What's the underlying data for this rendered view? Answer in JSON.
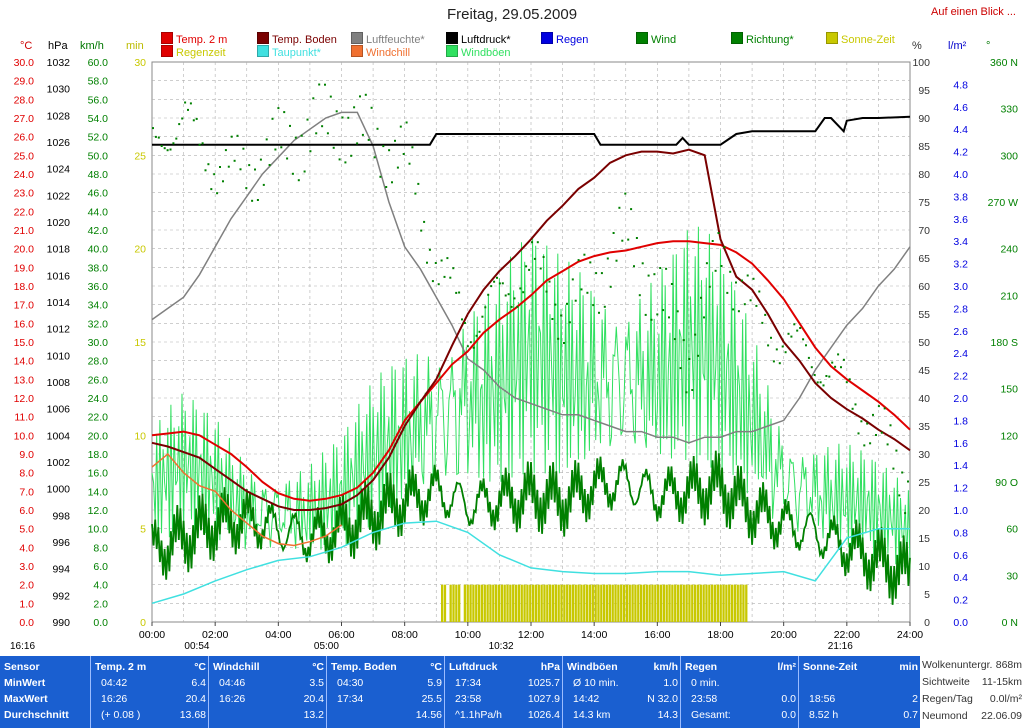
{
  "title": "Freitag, 29.05.2009",
  "top_link": "Auf einen Blick ...",
  "legend": [
    {
      "label": "Temp. 2 m",
      "color": "#e00000"
    },
    {
      "label": "Regenzeit",
      "color": "#e00000",
      "text_color": "#c8c800"
    },
    {
      "label": "Temp. Boden",
      "color": "#7a0000"
    },
    {
      "label": "Taupunkt*",
      "color": "#40e0e0"
    },
    {
      "label": "Luftfeuchte*",
      "color": "#808080"
    },
    {
      "label": "Windchill",
      "color": "#f07030"
    },
    {
      "label": "Luftdruck*",
      "color": "#000000"
    },
    {
      "label": "Windböen",
      "color": "#30e060"
    },
    {
      "label": "Regen",
      "color": "#0000e0"
    },
    {
      "label": "Wind",
      "color": "#008000"
    },
    {
      "label": "Richtung*",
      "color": "#008000"
    },
    {
      "label": "Sonne-Zeit",
      "color": "#c8c800"
    }
  ],
  "axis_units": {
    "temp": "°C",
    "press": "hPa",
    "wind": "km/h",
    "min": "min",
    "pct": "%",
    "rain": "l/m²",
    "dir": "°"
  },
  "chart_data": {
    "type": "line",
    "title": "Freitag, 29.05.2009",
    "x_ticks": [
      "00:00",
      "02:00",
      "04:00",
      "06:00",
      "08:00",
      "10:00",
      "12:00",
      "14:00",
      "16:00",
      "18:00",
      "20:00",
      "22:00",
      "24:00"
    ],
    "axes": {
      "temp": {
        "range": [
          0,
          30
        ],
        "ticks": [
          "0.0",
          "1.0",
          "2.0",
          "3.0",
          "4.0",
          "5.0",
          "6.0",
          "7.0",
          "8.0",
          "9.0",
          "10.0",
          "11.0",
          "12.0",
          "13.0",
          "14.0",
          "15.0",
          "16.0",
          "17.0",
          "18.0",
          "19.0",
          "20.0",
          "21.0",
          "22.0",
          "23.0",
          "24.0",
          "25.0",
          "26.0",
          "27.0",
          "28.0",
          "29.0",
          "30.0"
        ],
        "color": "#e00000"
      },
      "press": {
        "range": [
          990,
          1032
        ],
        "ticks": [
          "990",
          "992",
          "994",
          "996",
          "998",
          "1000",
          "1002",
          "1004",
          "1006",
          "1008",
          "1010",
          "1012",
          "1014",
          "1016",
          "1018",
          "1020",
          "1022",
          "1024",
          "1026",
          "1028",
          "1030",
          "1032"
        ],
        "color": "#000000"
      },
      "wind": {
        "range": [
          0,
          60
        ],
        "ticks": [
          "0.0",
          "2.0",
          "4.0",
          "6.0",
          "8.0",
          "10.0",
          "12.0",
          "14.0",
          "16.0",
          "18.0",
          "20.0",
          "22.0",
          "24.0",
          "26.0",
          "28.0",
          "30.0",
          "32.0",
          "34.0",
          "36.0",
          "38.0",
          "40.0",
          "42.0",
          "44.0",
          "46.0",
          "48.0",
          "50.0",
          "52.0",
          "54.0",
          "56.0",
          "58.0",
          "60.0"
        ],
        "color": "#008000"
      },
      "min": {
        "range": [
          0,
          30
        ],
        "ticks": [
          "0",
          "5",
          "10",
          "15",
          "20",
          "25",
          "30"
        ],
        "color": "#c8c800"
      },
      "pct": {
        "range": [
          0,
          100
        ],
        "ticks": [
          "0",
          "5",
          "10",
          "15",
          "20",
          "25",
          "30",
          "35",
          "40",
          "45",
          "50",
          "55",
          "60",
          "65",
          "70",
          "75",
          "80",
          "85",
          "90",
          "95",
          "100"
        ],
        "color": "#333333"
      },
      "rain": {
        "range": [
          0,
          5
        ],
        "ticks": [
          "0.0",
          "0.2",
          "0.4",
          "0.6",
          "0.8",
          "1.0",
          "1.2",
          "1.4",
          "1.6",
          "1.8",
          "2.0",
          "2.2",
          "2.4",
          "2.6",
          "2.8",
          "3.0",
          "3.2",
          "3.4",
          "3.6",
          "3.8",
          "4.0",
          "4.2",
          "4.4",
          "4.6",
          "4.8"
        ],
        "color": "#0000e0"
      },
      "dir": {
        "range": [
          0,
          360
        ],
        "ticks": [
          "0 N",
          "30",
          "60",
          "90 O",
          "120",
          "150",
          "180 S",
          "210",
          "240",
          "270 W",
          "300",
          "330",
          "360 N"
        ],
        "color": "#008000"
      }
    },
    "series": [
      {
        "name": "Temp. 2 m",
        "axis": "temp",
        "color": "#e00000",
        "x": [
          0,
          0.5,
          1,
          1.5,
          2,
          2.5,
          3,
          3.5,
          4,
          4.5,
          5,
          5.5,
          6,
          6.5,
          7,
          7.5,
          8,
          8.5,
          9,
          9.5,
          10,
          10.5,
          11,
          11.5,
          12,
          12.5,
          13,
          13.5,
          14,
          14.5,
          15,
          15.5,
          16,
          16.5,
          17,
          17.5,
          18,
          18.5,
          19,
          19.5,
          20,
          20.5,
          21,
          21.5,
          22,
          22.5,
          23,
          23.5,
          24
        ],
        "y": [
          10.0,
          10.1,
          10.2,
          10.0,
          9.5,
          9.0,
          8.3,
          7.5,
          6.9,
          6.6,
          6.5,
          6.6,
          6.8,
          7.2,
          8.0,
          9.2,
          10.8,
          11.8,
          12.8,
          13.8,
          14.5,
          15.5,
          16.2,
          16.8,
          17.5,
          18.3,
          18.8,
          19.3,
          19.6,
          19.8,
          19.9,
          20.1,
          20.3,
          20.4,
          20.4,
          20.3,
          20.2,
          19.8,
          19.2,
          18.3,
          17.3,
          16.0,
          14.7,
          13.7,
          13.0,
          12.4,
          11.8,
          11.1,
          10.3
        ]
      },
      {
        "name": "Temp. Boden",
        "axis": "temp",
        "color": "#7a0000",
        "x": [
          0,
          0.5,
          1,
          1.5,
          2,
          2.5,
          3,
          3.5,
          4,
          4.5,
          5,
          5.5,
          6,
          6.5,
          7,
          7.5,
          8,
          8.5,
          9,
          9.5,
          10,
          10.5,
          11,
          11.5,
          12,
          12.5,
          13,
          13.5,
          14,
          14.5,
          15,
          15.5,
          16,
          16.5,
          17,
          17.5,
          18,
          18.5,
          19,
          19.5,
          20,
          20.5,
          21,
          21.5,
          22,
          22.5,
          23,
          23.5,
          24
        ],
        "y": [
          9.6,
          9.4,
          9.1,
          8.8,
          8.2,
          7.6,
          7.0,
          6.6,
          6.2,
          6.0,
          6.0,
          6.1,
          6.3,
          6.8,
          7.6,
          8.8,
          10.5,
          11.8,
          13.0,
          14.8,
          16.5,
          17.8,
          18.8,
          19.6,
          20.5,
          21.5,
          22.3,
          23.2,
          23.8,
          24.6,
          25.0,
          25.2,
          25.2,
          25.1,
          25.3,
          25.0,
          20.5,
          18.5,
          17.8,
          16.5,
          15.0,
          14.0,
          12.8,
          12.0,
          11.4,
          10.9,
          10.3,
          9.8,
          9.2
        ]
      },
      {
        "name": "Luftfeuchte*",
        "axis": "pct",
        "color": "#808080",
        "x": [
          0,
          0.5,
          1,
          1.5,
          2,
          2.5,
          3,
          3.5,
          4,
          4.5,
          5,
          5.5,
          6,
          6.5,
          7,
          7.5,
          8,
          8.5,
          9,
          9.5,
          10,
          10.5,
          11,
          11.5,
          12,
          12.5,
          13,
          13.5,
          14,
          14.5,
          15,
          15.5,
          16,
          16.5,
          17,
          17.5,
          18,
          18.5,
          19,
          19.5,
          20,
          20.5,
          21,
          21.5,
          22,
          22.5,
          23,
          23.5,
          24
        ],
        "y": [
          54,
          56,
          58,
          62,
          67,
          72,
          76,
          80,
          83,
          86,
          88,
          90,
          91,
          91,
          85,
          75,
          67,
          63,
          58,
          53,
          47,
          45,
          42,
          40,
          39,
          38,
          37,
          37,
          36,
          35,
          34,
          34,
          33,
          33,
          32,
          33,
          33,
          34,
          34,
          35,
          36,
          40,
          45,
          49,
          53,
          56,
          60,
          63,
          67
        ]
      },
      {
        "name": "Luftdruck*",
        "axis": "press",
        "color": "#000000",
        "x": [
          0,
          1,
          2,
          3,
          4,
          5,
          6,
          7,
          8,
          8.8,
          9.0,
          10,
          11,
          12,
          13,
          14,
          14.2,
          15,
          16,
          16.6,
          16.8,
          17,
          18,
          18.5,
          19,
          20,
          21,
          21.3,
          21.5,
          21.9,
          22,
          22.5,
          23,
          24
        ],
        "y": [
          1025.8,
          1025.8,
          1025.8,
          1025.8,
          1025.8,
          1025.8,
          1025.8,
          1025.8,
          1025.8,
          1025.8,
          1026.6,
          1026.6,
          1026.6,
          1026.6,
          1026.6,
          1026.6,
          1025.8,
          1025.8,
          1025.8,
          1025.8,
          1026.3,
          1025.8,
          1025.8,
          1026.6,
          1026.8,
          1026.8,
          1026.8,
          1027.8,
          1027.8,
          1026.8,
          1027.6,
          1027.8,
          1027.8,
          1027.9
        ]
      },
      {
        "name": "Taupunkt*",
        "axis": "temp",
        "color": "#40e0e0",
        "x": [
          0,
          1,
          2,
          3,
          4,
          5,
          6,
          7,
          8,
          9,
          10,
          11,
          12,
          13,
          14,
          15,
          16,
          17,
          18,
          19,
          20,
          21,
          22,
          23,
          24
        ],
        "y": [
          1.0,
          1.5,
          2.2,
          2.8,
          3.3,
          3.5,
          4.0,
          4.8,
          5.3,
          5.4,
          4.8,
          3.6,
          2.9,
          2.7,
          2.6,
          2.6,
          2.7,
          2.7,
          2.5,
          2.6,
          2.7,
          2.2,
          4.5,
          5.0,
          5.0
        ]
      },
      {
        "name": "Windchill",
        "axis": "temp",
        "color": "#f07030",
        "x": [
          0,
          0.5,
          1,
          1.5,
          2,
          2.5,
          3,
          3.5,
          4,
          4.5,
          5,
          5.5,
          6
        ],
        "y": [
          8.3,
          9.0,
          8.0,
          7.3,
          7.0,
          6.0,
          5.3,
          4.6,
          4.2,
          4.1,
          4.3,
          4.6,
          5.2
        ]
      },
      {
        "name": "Wind",
        "axis": "wind",
        "color": "#008000",
        "x": [
          0,
          1,
          2,
          3,
          4,
          5,
          6,
          7,
          8,
          9,
          10,
          11,
          12,
          13,
          14,
          15,
          16,
          17,
          18,
          19,
          20,
          21,
          22,
          23,
          24
        ],
        "y": [
          7.5,
          9.0,
          10.5,
          11.0,
          10.0,
          9.0,
          10.0,
          11.5,
          13.0,
          14.0,
          12.5,
          13.0,
          13.5,
          13.0,
          14.5,
          15.0,
          13.5,
          14.0,
          14.5,
          12.0,
          10.5,
          9.5,
          8.0,
          6.5,
          5.0
        ]
      },
      {
        "name": "Windböen",
        "axis": "wind",
        "color": "#30e060",
        "x": [
          0,
          1,
          2,
          3,
          4,
          5,
          6,
          7,
          8,
          9,
          10,
          11,
          12,
          13,
          14,
          15,
          16,
          17,
          18,
          19,
          20,
          21,
          22,
          23,
          24
        ],
        "y": [
          15,
          17,
          16,
          14,
          14,
          13,
          14,
          18,
          22,
          26,
          28,
          27,
          29,
          28,
          30,
          31,
          29,
          30,
          28,
          24,
          18,
          16,
          14,
          12,
          10
        ]
      },
      {
        "name": "Sonne-Zeit",
        "axis": "min",
        "color": "#c8c800",
        "x": [
          9.2,
          9.4,
          9.6,
          9.8,
          10.0,
          10.2,
          10.4,
          10.6,
          10.8,
          11.0,
          12,
          13,
          14,
          15,
          16,
          17,
          18,
          18.8
        ],
        "y": [
          2,
          1,
          2,
          1,
          2,
          2,
          1,
          2,
          2,
          2,
          2,
          2,
          2,
          2,
          2,
          2,
          2,
          2
        ]
      },
      {
        "name": "Richtung*",
        "axis": "dir",
        "color": "#008000",
        "x": [
          0,
          0.5,
          1,
          1.5,
          2,
          2.5,
          3,
          3.5,
          4,
          4.5,
          5,
          5.5,
          6,
          6.5,
          7,
          7.5,
          8,
          9,
          10,
          11,
          12,
          13,
          14,
          15,
          16,
          17,
          18,
          19,
          20,
          21,
          22,
          23,
          24
        ],
        "y": [
          305,
          318,
          325,
          305,
          295,
          292,
          290,
          300,
          305,
          310,
          318,
          320,
          325,
          315,
          310,
          305,
          300,
          230,
          190,
          210,
          230,
          200,
          220,
          250,
          210,
          170,
          240,
          200,
          180,
          170,
          150,
          120,
          90
        ]
      }
    ],
    "grid": true,
    "legend_position": "top"
  },
  "sun_strip": {
    "left_time": "16:16",
    "markers": [
      {
        "label": "00:54",
        "at": 0.9
      },
      {
        "label": "05:00",
        "at": 5.0
      },
      {
        "label": "10:32",
        "at": 10.53
      },
      {
        "label": "21:16",
        "at": 21.27
      }
    ]
  },
  "summary": {
    "rows": [
      "Sensor",
      "MinWert",
      "MaxWert",
      "Durchschnitt"
    ],
    "cols": [
      {
        "title": "Temp. 2 m",
        "unit": "°C",
        "cells": [
          [
            "04:42",
            "6.4"
          ],
          [
            "16:26",
            "20.4"
          ],
          [
            "(+ 0.08 )",
            "13.68"
          ]
        ]
      },
      {
        "title": "Windchill",
        "unit": "°C",
        "cells": [
          [
            "04:46",
            "3.5"
          ],
          [
            "16:26",
            "20.4"
          ],
          [
            "",
            "13.2"
          ]
        ]
      },
      {
        "title": "Temp. Boden",
        "unit": "°C",
        "cells": [
          [
            "04:30",
            "5.9"
          ],
          [
            "17:34",
            "25.5"
          ],
          [
            "",
            "14.56"
          ]
        ]
      },
      {
        "title": "Luftdruck",
        "unit": "hPa",
        "cells": [
          [
            "17:34",
            "1025.7"
          ],
          [
            "23:58",
            "1027.9"
          ],
          [
            "^1.1hPa/h",
            "1026.4"
          ]
        ]
      },
      {
        "title": "Windböen",
        "unit": "km/h",
        "cells": [
          [
            "Ø 10 min.",
            "1.0"
          ],
          [
            "14:42",
            "N 32.0"
          ],
          [
            "14.3 km",
            "14.3"
          ]
        ]
      },
      {
        "title": "Regen",
        "unit": "l/m²",
        "cells": [
          [
            "0 min.",
            ""
          ],
          [
            "23:58",
            "0.0"
          ],
          [
            "Gesamt:",
            "0.0"
          ]
        ]
      },
      {
        "title": "Sonne-Zeit",
        "unit": "min",
        "cells": [
          [
            "",
            ""
          ],
          [
            "18:56",
            "2"
          ],
          [
            "8.52 h",
            "0.7"
          ]
        ]
      }
    ],
    "side": [
      {
        "k": "Wolkenuntergr.",
        "v": "868m"
      },
      {
        "k": "Sichtweite",
        "v": "11-15km"
      },
      {
        "k": "Regen/Tag",
        "v": "0.0l/m²"
      },
      {
        "k": "Neumond",
        "v": "22.06.09"
      }
    ]
  }
}
